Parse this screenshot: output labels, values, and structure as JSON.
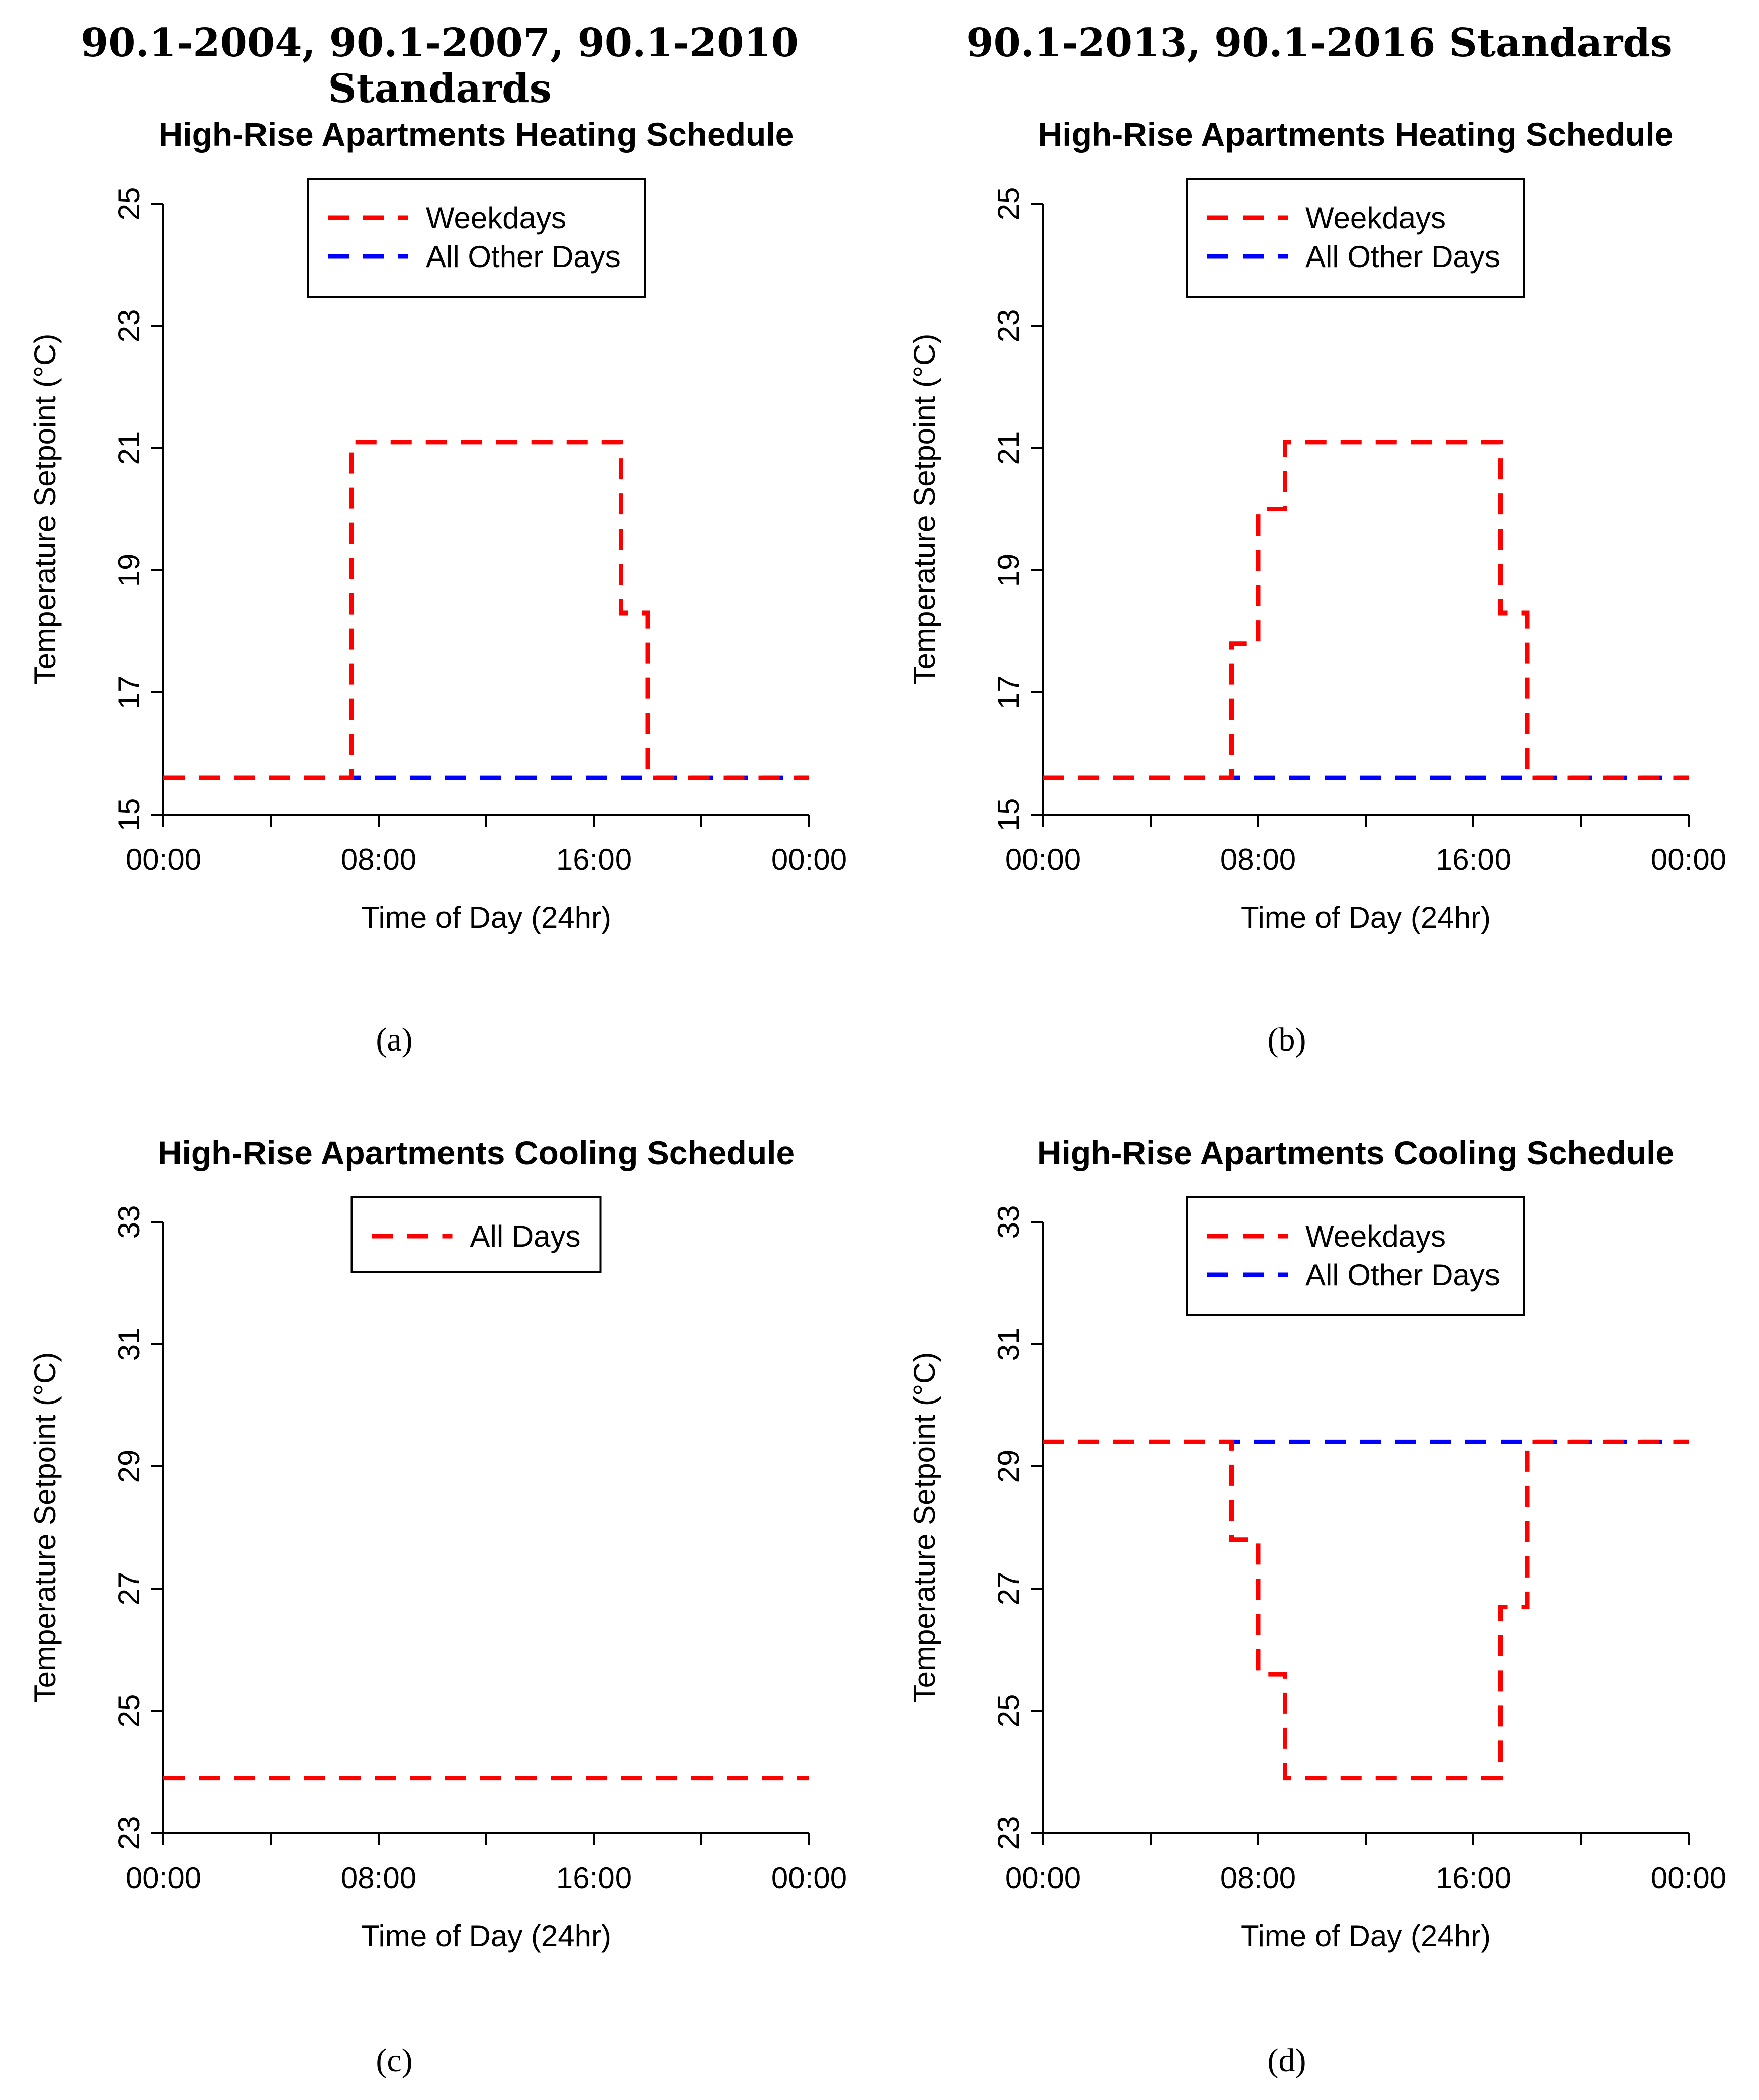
{
  "column_headers": {
    "left": "90.1-2004, 90.1-2007, 90.1-2010 Standards",
    "right": "90.1-2013, 90.1-2016 Standards"
  },
  "colors": {
    "red": "#ff0000",
    "blue": "#0000ff"
  },
  "chart_data": [
    {
      "id": "a",
      "type": "line",
      "caption": "(a)",
      "title": "High-Rise Apartments Heating Schedule",
      "xlabel": "Time of Day (24hr)",
      "ylabel": "Temperature Setpoint (°C)",
      "xlim": [
        0,
        24
      ],
      "ylim": [
        15,
        25
      ],
      "xticks": [
        0,
        4,
        8,
        12,
        16,
        20,
        24
      ],
      "xtick_labels": [
        {
          "x": 0,
          "label": "00:00"
        },
        {
          "x": 8,
          "label": "08:00"
        },
        {
          "x": 16,
          "label": "16:00"
        },
        {
          "x": 24,
          "label": "00:00"
        }
      ],
      "yticks": [
        15,
        17,
        19,
        21,
        23,
        25
      ],
      "ytick_labels": [
        "15",
        "17",
        "19",
        "21",
        "23",
        "25"
      ],
      "legend": {
        "position": "top-center"
      },
      "series": [
        {
          "name": "Weekdays",
          "color": "#ff0000",
          "x": [
            0,
            7,
            7,
            17,
            17,
            18,
            18,
            24
          ],
          "y": [
            15.6,
            15.6,
            21.1,
            21.1,
            18.3,
            18.3,
            15.6,
            15.6
          ]
        },
        {
          "name": "All Other Days",
          "color": "#0000ff",
          "x": [
            0,
            24
          ],
          "y": [
            15.6,
            15.6
          ]
        }
      ]
    },
    {
      "id": "b",
      "type": "line",
      "caption": "(b)",
      "title": "High-Rise Apartments Heating Schedule",
      "xlabel": "Time of Day (24hr)",
      "ylabel": "Temperature Setpoint (°C)",
      "xlim": [
        0,
        24
      ],
      "ylim": [
        15,
        25
      ],
      "xticks": [
        0,
        4,
        8,
        12,
        16,
        20,
        24
      ],
      "xtick_labels": [
        {
          "x": 0,
          "label": "00:00"
        },
        {
          "x": 8,
          "label": "08:00"
        },
        {
          "x": 16,
          "label": "16:00"
        },
        {
          "x": 24,
          "label": "00:00"
        }
      ],
      "yticks": [
        15,
        17,
        19,
        21,
        23,
        25
      ],
      "ytick_labels": [
        "15",
        "17",
        "19",
        "21",
        "23",
        "25"
      ],
      "legend": {
        "position": "top-center"
      },
      "series": [
        {
          "name": "Weekdays",
          "color": "#ff0000",
          "x": [
            0,
            7,
            7,
            8,
            8,
            9,
            9,
            17,
            17,
            18,
            18,
            24
          ],
          "y": [
            15.6,
            15.6,
            17.8,
            17.8,
            20.0,
            20.0,
            21.1,
            21.1,
            18.3,
            18.3,
            15.6,
            15.6
          ]
        },
        {
          "name": "All Other Days",
          "color": "#0000ff",
          "x": [
            0,
            24
          ],
          "y": [
            15.6,
            15.6
          ]
        }
      ]
    },
    {
      "id": "c",
      "type": "line",
      "caption": "(c)",
      "title": "High-Rise Apartments Cooling Schedule",
      "xlabel": "Time of Day (24hr)",
      "ylabel": "Temperature Setpoint (°C)",
      "xlim": [
        0,
        24
      ],
      "ylim": [
        23,
        33
      ],
      "xticks": [
        0,
        4,
        8,
        12,
        16,
        20,
        24
      ],
      "xtick_labels": [
        {
          "x": 0,
          "label": "00:00"
        },
        {
          "x": 8,
          "label": "08:00"
        },
        {
          "x": 16,
          "label": "16:00"
        },
        {
          "x": 24,
          "label": "00:00"
        }
      ],
      "yticks": [
        23,
        25,
        27,
        29,
        31,
        33
      ],
      "ytick_labels": [
        "23",
        "25",
        "27",
        "29",
        "31",
        "33"
      ],
      "legend": {
        "position": "top-center"
      },
      "series": [
        {
          "name": "All Days",
          "color": "#ff0000",
          "x": [
            0,
            24
          ],
          "y": [
            23.9,
            23.9
          ]
        }
      ]
    },
    {
      "id": "d",
      "type": "line",
      "caption": "(d)",
      "title": "High-Rise Apartments Cooling Schedule",
      "xlabel": "Time of Day (24hr)",
      "ylabel": "Temperature Setpoint (°C)",
      "xlim": [
        0,
        24
      ],
      "ylim": [
        23,
        33
      ],
      "xticks": [
        0,
        4,
        8,
        12,
        16,
        20,
        24
      ],
      "xtick_labels": [
        {
          "x": 0,
          "label": "00:00"
        },
        {
          "x": 8,
          "label": "08:00"
        },
        {
          "x": 16,
          "label": "16:00"
        },
        {
          "x": 24,
          "label": "00:00"
        }
      ],
      "yticks": [
        23,
        25,
        27,
        29,
        31,
        33
      ],
      "ytick_labels": [
        "23",
        "25",
        "27",
        "29",
        "31",
        "33"
      ],
      "legend": {
        "position": "top-center"
      },
      "series": [
        {
          "name": "Weekdays",
          "color": "#ff0000",
          "x": [
            0,
            7,
            7,
            8,
            8,
            9,
            9,
            17,
            17,
            18,
            18,
            24
          ],
          "y": [
            29.4,
            29.4,
            27.8,
            27.8,
            25.6,
            25.6,
            23.9,
            23.9,
            26.7,
            26.7,
            29.4,
            29.4
          ]
        },
        {
          "name": "All Other Days",
          "color": "#0000ff",
          "x": [
            0,
            24
          ],
          "y": [
            29.4,
            29.4
          ]
        }
      ]
    }
  ]
}
